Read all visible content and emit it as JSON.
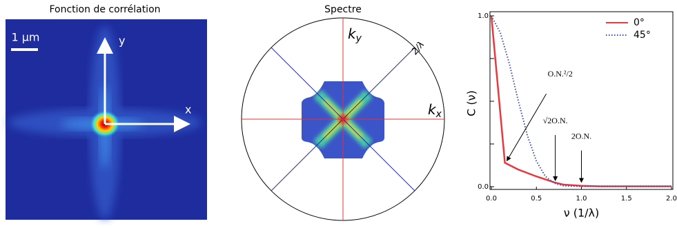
{
  "correlation": {
    "title": "Fonction de corrélation",
    "scale_label": "1 µm",
    "axis_x": "x",
    "axis_y": "y"
  },
  "spectrum": {
    "title": "Spectre",
    "ky": {
      "main": "k",
      "sub": "y"
    },
    "kx": {
      "main": "k",
      "sub": "x"
    },
    "radius_label": "2/λ"
  },
  "chart_data": {
    "type": "line",
    "xlabel": "ν (1/λ)",
    "ylabel": "C (ν)",
    "xlim": [
      0,
      2
    ],
    "ylim": [
      0,
      1
    ],
    "xticks": [
      {
        "value": 0,
        "label": "0.0"
      },
      {
        "value": 0.5,
        "label": "0.5"
      },
      {
        "value": 1,
        "label": "1.0"
      },
      {
        "value": 1.5,
        "label": "1.5"
      },
      {
        "value": 2,
        "label": "2.0"
      }
    ],
    "yticks": [
      {
        "value": 0,
        "label": "0.0"
      },
      {
        "value": 1,
        "label": "1.0"
      }
    ],
    "yminorticks": [
      0.25,
      0.5,
      0.75
    ],
    "legend": "upper right",
    "series": [
      {
        "name": "0°",
        "color": "#e8383d",
        "style": "solid",
        "x": [
          0,
          0.15,
          0.3,
          0.5,
          0.7,
          0.8,
          1.0,
          1.2,
          2.0
        ],
        "values": [
          1.0,
          0.14,
          0.1,
          0.06,
          0.025,
          0.012,
          0.005,
          0.002,
          0.002
        ]
      },
      {
        "name": "45°",
        "color": "#3a4aa8",
        "style": "dotted",
        "x": [
          0,
          0.1,
          0.2,
          0.3,
          0.4,
          0.5,
          0.6,
          0.7,
          0.8,
          1.0,
          2.0
        ],
        "values": [
          1.0,
          0.9,
          0.72,
          0.5,
          0.3,
          0.15,
          0.06,
          0.02,
          0.005,
          0.002,
          0.002
        ]
      }
    ],
    "annotations": [
      {
        "text": "O.N.²/2",
        "x": 0.15,
        "y": 0.14
      },
      {
        "text": "√2O.N.",
        "x": 0.71,
        "y": 0.02
      },
      {
        "text": "2O.N.",
        "x": 1.0,
        "y": 0.01
      }
    ]
  }
}
